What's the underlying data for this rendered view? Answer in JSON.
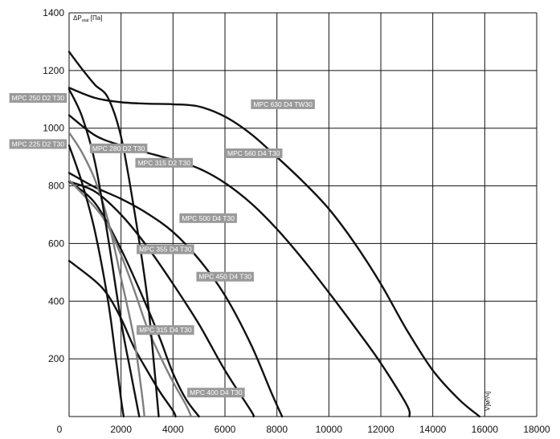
{
  "chart_data": {
    "type": "line",
    "title": "",
    "ylabel": "ΔPstat [Па]",
    "ylabel_parts": {
      "pre": "ΔP",
      "sub": "stat",
      "post": " [Па]"
    },
    "xlabel": "V[м³/ч]",
    "xlim": [
      0,
      18000
    ],
    "ylim": [
      0,
      1400
    ],
    "x_ticks": [
      0,
      2000,
      4000,
      6000,
      8000,
      10000,
      12000,
      14000,
      16000,
      18000
    ],
    "y_ticks": [
      0,
      200,
      400,
      600,
      800,
      1000,
      1200,
      1400
    ],
    "grid": true,
    "legend": "none",
    "colors": {
      "black_curve": "#111111",
      "gray_curve": "#7f7f7f",
      "label_bg": "#9a9a9a",
      "grid": "#111111"
    },
    "series": [
      {
        "name": "MPC 630 D4 TW30",
        "color": "black",
        "label_at": [
          7000,
          1083
        ],
        "points": [
          [
            0,
            1140
          ],
          [
            1000,
            1105
          ],
          [
            2000,
            1090
          ],
          [
            3000,
            1085
          ],
          [
            4000,
            1083
          ],
          [
            5000,
            1075
          ],
          [
            6000,
            1040
          ],
          [
            7000,
            980
          ],
          [
            8000,
            900
          ],
          [
            9000,
            815
          ],
          [
            10000,
            720
          ],
          [
            11000,
            600
          ],
          [
            12000,
            460
          ],
          [
            13000,
            300
          ],
          [
            14000,
            160
          ],
          [
            15000,
            60
          ],
          [
            15800,
            0
          ]
        ]
      },
      {
        "name": "MPC 560 D4 T30",
        "color": "black",
        "label_at": [
          6000,
          913
        ],
        "points": [
          [
            0,
            1045
          ],
          [
            1000,
            975
          ],
          [
            2000,
            940
          ],
          [
            3000,
            915
          ],
          [
            4000,
            890
          ],
          [
            5000,
            860
          ],
          [
            6000,
            810
          ],
          [
            7000,
            740
          ],
          [
            8000,
            650
          ],
          [
            9000,
            545
          ],
          [
            10000,
            430
          ],
          [
            11000,
            310
          ],
          [
            12000,
            185
          ],
          [
            13000,
            40
          ],
          [
            13100,
            0
          ]
        ]
      },
      {
        "name": "MPC 500 D4 T30",
        "color": "black",
        "label_at": [
          4250,
          688
        ],
        "points": [
          [
            0,
            845
          ],
          [
            1000,
            795
          ],
          [
            2000,
            755
          ],
          [
            3000,
            705
          ],
          [
            4000,
            640
          ],
          [
            5000,
            545
          ],
          [
            6000,
            420
          ],
          [
            7000,
            250
          ],
          [
            7800,
            80
          ],
          [
            8200,
            0
          ]
        ]
      },
      {
        "name": "MPC 450 D4 T30",
        "color": "black",
        "label_at": [
          4900,
          485
        ],
        "points": [
          [
            0,
            815
          ],
          [
            1000,
            780
          ],
          [
            2000,
            700
          ],
          [
            3000,
            590
          ],
          [
            4000,
            460
          ],
          [
            5000,
            320
          ],
          [
            6000,
            160
          ],
          [
            7000,
            20
          ],
          [
            7100,
            0
          ]
        ]
      },
      {
        "name": "MPC 400 D4 T30",
        "color": "black",
        "label_at": [
          4550,
          83
        ],
        "points": [
          [
            0,
            815
          ],
          [
            1000,
            740
          ],
          [
            2000,
            580
          ],
          [
            3000,
            380
          ],
          [
            3500,
            270
          ],
          [
            4000,
            150
          ],
          [
            4500,
            60
          ],
          [
            5000,
            0
          ]
        ]
      },
      {
        "name": "MPC 355 D4 T30",
        "color": "gray",
        "label_at": [
          2600,
          580
        ],
        "points": [
          [
            0,
            820
          ],
          [
            1000,
            725
          ],
          [
            1500,
            660
          ],
          [
            2000,
            560
          ],
          [
            2500,
            440
          ],
          [
            3000,
            310
          ],
          [
            3500,
            210
          ],
          [
            4000,
            120
          ],
          [
            4500,
            40
          ],
          [
            4700,
            0
          ]
        ]
      },
      {
        "name": "MPC 315 D4 T30",
        "color": "black",
        "label_at": [
          2600,
          300
        ],
        "points": [
          [
            0,
            540
          ],
          [
            1000,
            470
          ],
          [
            1500,
            420
          ],
          [
            2000,
            340
          ],
          [
            2500,
            240
          ],
          [
            3000,
            160
          ],
          [
            3500,
            85
          ],
          [
            4000,
            20
          ],
          [
            4100,
            0
          ]
        ]
      },
      {
        "name": "MPC 315 D2 T30",
        "color": "black",
        "label_at": [
          2550,
          880
        ],
        "points": [
          [
            0,
            1265
          ],
          [
            500,
            1205
          ],
          [
            1000,
            1150
          ],
          [
            1500,
            1105
          ],
          [
            2000,
            970
          ],
          [
            2500,
            720
          ],
          [
            3000,
            420
          ],
          [
            3300,
            150
          ],
          [
            3450,
            0
          ]
        ]
      },
      {
        "name": "MPC 280 D2 T30",
        "color": "gray",
        "label_at": [
          800,
          930
        ],
        "points": [
          [
            0,
            985
          ],
          [
            500,
            915
          ],
          [
            1000,
            820
          ],
          [
            1500,
            680
          ],
          [
            2000,
            480
          ],
          [
            2500,
            270
          ],
          [
            2800,
            80
          ],
          [
            2900,
            0
          ]
        ]
      },
      {
        "name": "MPC 250 D2 T30",
        "color": "black",
        "label_at": [
          -2300,
          1105
        ],
        "points": [
          [
            0,
            1135
          ],
          [
            500,
            1040
          ],
          [
            1000,
            880
          ],
          [
            1500,
            620
          ],
          [
            2000,
            330
          ],
          [
            2400,
            140
          ],
          [
            2700,
            0
          ]
        ]
      },
      {
        "name": "MPC 225 D2 T30",
        "color": "black",
        "label_at": [
          -2300,
          945
        ],
        "points": [
          [
            0,
            940
          ],
          [
            500,
            810
          ],
          [
            1000,
            640
          ],
          [
            1500,
            400
          ],
          [
            1800,
            200
          ],
          [
            2000,
            60
          ],
          [
            2100,
            0
          ]
        ]
      }
    ]
  }
}
